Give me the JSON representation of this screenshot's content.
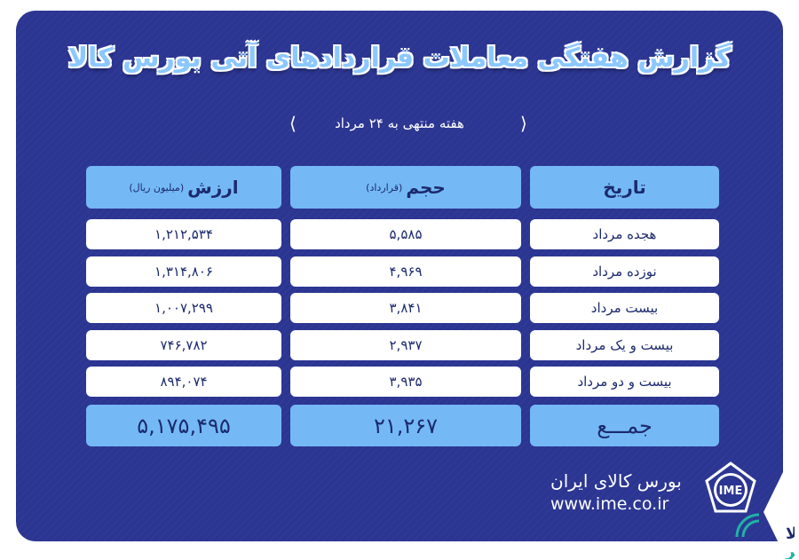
{
  "title": "گزارش هفتگی معاملات قراردادهای آتی بورس کالا",
  "subtitle": "هفته منتهی به ۲۴ مرداد",
  "headers": {
    "date": "تاریخ",
    "volume": "حجم",
    "volume_unit": "(قرارداد)",
    "value": "ارزش",
    "value_unit": "(میلیون ریال)"
  },
  "rows": [
    {
      "date": "هجده مرداد",
      "volume": "۵,۵۸۵",
      "value": "۱,۲۱۲,۵۳۴"
    },
    {
      "date": "نوزده مرداد",
      "volume": "۴,۹۶۹",
      "value": "۱,۳۱۴,۸۰۶"
    },
    {
      "date": "بیست مرداد",
      "volume": "۳,۸۴۱",
      "value": "۱,۰۰۷,۲۹۹"
    },
    {
      "date": "بیست و یک مرداد",
      "volume": "۲,۹۳۷",
      "value": "۷۴۶,۷۸۲"
    },
    {
      "date": "بیست و دو مرداد",
      "volume": "۳,۹۳۵",
      "value": "۸۹۴,۰۷۴"
    }
  ],
  "total": {
    "label": "جمـــع",
    "volume": "۲۱,۲۶۷",
    "value": "۵,۱۷۵,۴۹۵"
  },
  "footer": {
    "name": "بورس کالای ایران",
    "url": "www.ime.co.ir",
    "logo_text": "IME"
  },
  "watermark": "کالا خبر",
  "colors": {
    "background": "#2b3592",
    "header": "#74b9f5",
    "text": "#1c2a6e"
  }
}
